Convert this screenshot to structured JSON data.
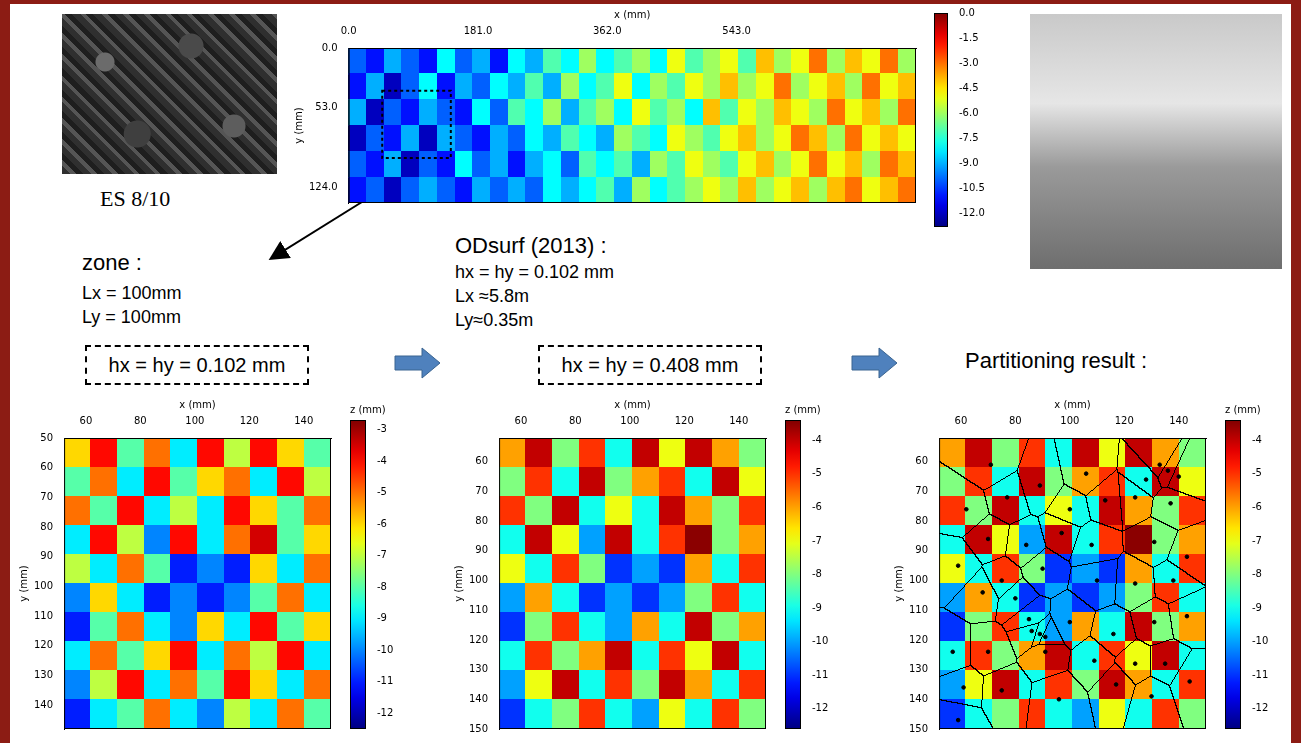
{
  "photo_label": "ES 8/10",
  "zone_text": {
    "title": "zone :",
    "lines": [
      "Lx = 100mm",
      "Ly = 100mm"
    ]
  },
  "odsurf_text": {
    "title": "ODsurf (2013) :",
    "lines": [
      "hx = hy = 0.102 mm",
      "Lx ≈5.8m",
      "Ly≈0.35m"
    ]
  },
  "resolution_boxes": [
    "hx = hy = 0.102 mm",
    "hx = hy = 0.408 mm"
  ],
  "partition_title": "Partitioning result :",
  "chart_data": [
    {
      "type": "heatmap",
      "x_label": "x (mm)",
      "y_label": "y (mm)",
      "xlim": [
        0,
        794
      ],
      "xticks": [
        {
          "value": 0,
          "label": "0.0"
        },
        {
          "value": 181,
          "label": "181.0"
        },
        {
          "value": 362,
          "label": "362.0"
        },
        {
          "value": 543,
          "label": "543.0"
        }
      ],
      "ylim": [
        0,
        138
      ],
      "yticks": [
        {
          "value": 0,
          "label": "0.0"
        },
        {
          "value": 53,
          "label": "53.0"
        },
        {
          "value": 124,
          "label": "124.0"
        }
      ],
      "zone_box": {
        "xlim": [
          47,
          143
        ],
        "ylim": [
          38,
          98
        ]
      },
      "cells": [
        [
          -10,
          -11,
          -9,
          -10,
          -11,
          -8,
          -10,
          -9,
          -11,
          -8,
          -9,
          -7,
          -8,
          -6,
          -8,
          -7,
          -6,
          -8,
          -5,
          -7,
          -6,
          -5,
          -7,
          -4,
          -6,
          -5,
          -3,
          -6,
          -4,
          -5,
          -3,
          -6
        ],
        [
          -11,
          -9,
          -12,
          -10,
          -8,
          -11,
          -9,
          -10,
          -8,
          -9,
          -7,
          -9,
          -6,
          -8,
          -7,
          -5,
          -8,
          -6,
          -7,
          -5,
          -6,
          -4,
          -6,
          -5,
          -3,
          -6,
          -5,
          -4,
          -6,
          -3,
          -5,
          -4
        ],
        [
          -9,
          -12,
          -10,
          -11,
          -9,
          -10,
          -11,
          -8,
          -10,
          -7,
          -8,
          -6,
          -9,
          -7,
          -6,
          -8,
          -5,
          -7,
          -6,
          -8,
          -4,
          -7,
          -5,
          -6,
          -4,
          -5,
          -6,
          -3,
          -5,
          -4,
          -6,
          -3
        ],
        [
          -12,
          -10,
          -11,
          -9,
          -12,
          -9,
          -10,
          -11,
          -9,
          -10,
          -8,
          -9,
          -7,
          -8,
          -9,
          -6,
          -7,
          -8,
          -5,
          -6,
          -7,
          -5,
          -4,
          -6,
          -5,
          -3,
          -4,
          -6,
          -3,
          -5,
          -4,
          -5
        ],
        [
          -10,
          -11,
          -9,
          -12,
          -10,
          -11,
          -8,
          -10,
          -9,
          -11,
          -9,
          -8,
          -10,
          -7,
          -8,
          -7,
          -9,
          -6,
          -7,
          -5,
          -6,
          -7,
          -5,
          -4,
          -6,
          -5,
          -3,
          -5,
          -4,
          -6,
          -3,
          -4
        ],
        [
          -11,
          -10,
          -12,
          -10,
          -9,
          -10,
          -11,
          -9,
          -10,
          -9,
          -10,
          -8,
          -9,
          -8,
          -7,
          -9,
          -6,
          -8,
          -7,
          -6,
          -5,
          -6,
          -4,
          -6,
          -5,
          -4,
          -6,
          -4,
          -3,
          -5,
          -4,
          -3
        ]
      ],
      "colorbar": {
        "range": [
          -12.8,
          0
        ],
        "ticks": [
          {
            "value": 0,
            "label": "0.0"
          },
          -1.5,
          {
            "value": -3,
            "label": "-3.0"
          },
          -4.5,
          {
            "value": -6,
            "label": "-6.0"
          },
          -7.5,
          {
            "value": -9,
            "label": "-9.0"
          },
          -10.5,
          {
            "value": -12,
            "label": "-12.0"
          }
        ]
      }
    },
    {
      "type": "heatmap",
      "x_label": "x (mm)",
      "y_label": "y (mm)",
      "xlim": [
        52,
        150
      ],
      "xticks": [
        60,
        80,
        100,
        120,
        140
      ],
      "ylim": [
        50,
        148
      ],
      "yticks": [
        50,
        60,
        70,
        80,
        90,
        100,
        110,
        120,
        130,
        140
      ],
      "cells": [
        [
          -6,
          -4,
          -8,
          -5,
          -9,
          -4,
          -7,
          -4,
          -6,
          -8
        ],
        [
          -8,
          -5,
          -9,
          -4,
          -8,
          -6,
          -5,
          -9,
          -4,
          -7
        ],
        [
          -5,
          -8,
          -4,
          -9,
          -7,
          -9,
          -4,
          -6,
          -8,
          -5
        ],
        [
          -9,
          -4,
          -7,
          -10,
          -4,
          -9,
          -5,
          -3.5,
          -8,
          -6
        ],
        [
          -7,
          -9,
          -5,
          -8,
          -11,
          -10,
          -11,
          -6,
          -9,
          -5
        ],
        [
          -10,
          -6,
          -9,
          -11,
          -10,
          -11,
          -10,
          -8,
          -5,
          -9
        ],
        [
          -11,
          -8,
          -5,
          -9,
          -10,
          -6,
          -9,
          -4,
          -8,
          -6
        ],
        [
          -9,
          -5,
          -8,
          -6,
          -4,
          -9,
          -5,
          -7,
          -4,
          -9
        ],
        [
          -10,
          -7,
          -4,
          -9,
          -5,
          -8,
          -4,
          -6,
          -9,
          -5
        ],
        [
          -11,
          -9,
          -8,
          -5,
          -9,
          -10,
          -7,
          -9,
          -5,
          -8
        ]
      ],
      "colorbar": {
        "label": "z (mm)",
        "range": [
          -12.5,
          -2.7
        ],
        "ticks": [
          -3,
          -4,
          -5,
          -6,
          -7,
          -8,
          -9,
          -10,
          -11,
          -12
        ]
      }
    },
    {
      "type": "heatmap",
      "x_label": "x (mm)",
      "y_label": "y (mm)",
      "xlim": [
        52,
        150
      ],
      "xticks": [
        60,
        80,
        100,
        120,
        140
      ],
      "ylim": [
        52,
        150
      ],
      "yticks": [
        60,
        70,
        80,
        90,
        100,
        110,
        120,
        130,
        140,
        150
      ],
      "cells": [
        [
          -6,
          -4,
          -8,
          -5,
          -9,
          -4,
          -7,
          -4,
          -6,
          -8
        ],
        [
          -8,
          -5,
          -9,
          -4,
          -8,
          -6,
          -5,
          -9,
          -4,
          -7
        ],
        [
          -5,
          -8,
          -4,
          -9,
          -7,
          -9,
          -4,
          -6,
          -8,
          -5
        ],
        [
          -9,
          -4,
          -7,
          -10,
          -4,
          -9,
          -5,
          -3.5,
          -8,
          -6
        ],
        [
          -7,
          -9,
          -5,
          -8,
          -11,
          -10,
          -11,
          -6,
          -9,
          -5
        ],
        [
          -10,
          -6,
          -9,
          -11,
          -10,
          -11,
          -10,
          -8,
          -5,
          -9
        ],
        [
          -11,
          -8,
          -5,
          -9,
          -10,
          -6,
          -9,
          -4,
          -8,
          -6
        ],
        [
          -9,
          -5,
          -8,
          -6,
          -4,
          -9,
          -5,
          -7,
          -4,
          -9
        ],
        [
          -10,
          -7,
          -4,
          -9,
          -5,
          -8,
          -4,
          -6,
          -9,
          -5
        ],
        [
          -11,
          -9,
          -8,
          -5,
          -9,
          -10,
          -7,
          -9,
          -5,
          -8
        ]
      ],
      "colorbar": {
        "label": "z (mm)",
        "range": [
          -12.6,
          -3.4
        ],
        "ticks": [
          -4,
          -5,
          -6,
          -7,
          -8,
          -9,
          -10,
          -11,
          -12
        ]
      }
    },
    {
      "type": "heatmap",
      "x_label": "x (mm)",
      "y_label": "y (mm)",
      "xlim": [
        52,
        150
      ],
      "xticks": [
        60,
        80,
        100,
        120,
        140
      ],
      "ylim": [
        52,
        150
      ],
      "yticks": [
        60,
        70,
        80,
        90,
        100,
        110,
        120,
        130,
        140,
        150
      ],
      "cells": [
        [
          -6,
          -4,
          -8,
          -5,
          -9,
          -4,
          -7,
          -4,
          -6,
          -8
        ],
        [
          -8,
          -5,
          -9,
          -4,
          -8,
          -6,
          -5,
          -9,
          -4,
          -7
        ],
        [
          -5,
          -8,
          -4,
          -9,
          -7,
          -9,
          -4,
          -6,
          -8,
          -5
        ],
        [
          -9,
          -4,
          -7,
          -10,
          -4,
          -9,
          -5,
          -3.5,
          -8,
          -6
        ],
        [
          -7,
          -9,
          -5,
          -8,
          -11,
          -10,
          -11,
          -6,
          -9,
          -5
        ],
        [
          -10,
          -6,
          -9,
          -11,
          -10,
          -11,
          -10,
          -8,
          -5,
          -9
        ],
        [
          -11,
          -8,
          -5,
          -9,
          -10,
          -6,
          -9,
          -4,
          -8,
          -6
        ],
        [
          -9,
          -5,
          -8,
          -6,
          -4,
          -9,
          -5,
          -7,
          -4,
          -9
        ],
        [
          -10,
          -7,
          -4,
          -9,
          -5,
          -8,
          -4,
          -6,
          -9,
          -5
        ],
        [
          -11,
          -9,
          -8,
          -5,
          -9,
          -10,
          -7,
          -9,
          -5,
          -8
        ]
      ],
      "points": [
        [
          71,
          61
        ],
        [
          89,
          68
        ],
        [
          106,
          64
        ],
        [
          128,
          66
        ],
        [
          133,
          61
        ],
        [
          136,
          63
        ],
        [
          140,
          65
        ],
        [
          62,
          76
        ],
        [
          77,
          72
        ],
        [
          100,
          76
        ],
        [
          113,
          73
        ],
        [
          124,
          72
        ],
        [
          137,
          74
        ],
        [
          70,
          86
        ],
        [
          97,
          84
        ],
        [
          84,
          88
        ],
        [
          108,
          88
        ],
        [
          131,
          87
        ],
        [
          143,
          92
        ],
        [
          59,
          95
        ],
        [
          75,
          100
        ],
        [
          90,
          96
        ],
        [
          110,
          100
        ],
        [
          124,
          101
        ],
        [
          138,
          100
        ],
        [
          68,
          104
        ],
        [
          80,
          106
        ],
        [
          85,
          113
        ],
        [
          86,
          117
        ],
        [
          89,
          118
        ],
        [
          91,
          119
        ],
        [
          100,
          114
        ],
        [
          116,
          118
        ],
        [
          131,
          114
        ],
        [
          143,
          112
        ],
        [
          57,
          124
        ],
        [
          70,
          124
        ],
        [
          91,
          124
        ],
        [
          109,
          127
        ],
        [
          124,
          128
        ],
        [
          135,
          128
        ],
        [
          61,
          136
        ],
        [
          75,
          137
        ],
        [
          96,
          140
        ],
        [
          117,
          135
        ],
        [
          130,
          139
        ],
        [
          144,
          134
        ],
        [
          59,
          147
        ]
      ],
      "marker": "circle",
      "colorbar": {
        "label": "z (mm)",
        "range": [
          -12.6,
          -3.4
        ],
        "ticks": [
          -4,
          -5,
          -6,
          -7,
          -8,
          -9,
          -10,
          -11,
          -12
        ]
      }
    }
  ]
}
